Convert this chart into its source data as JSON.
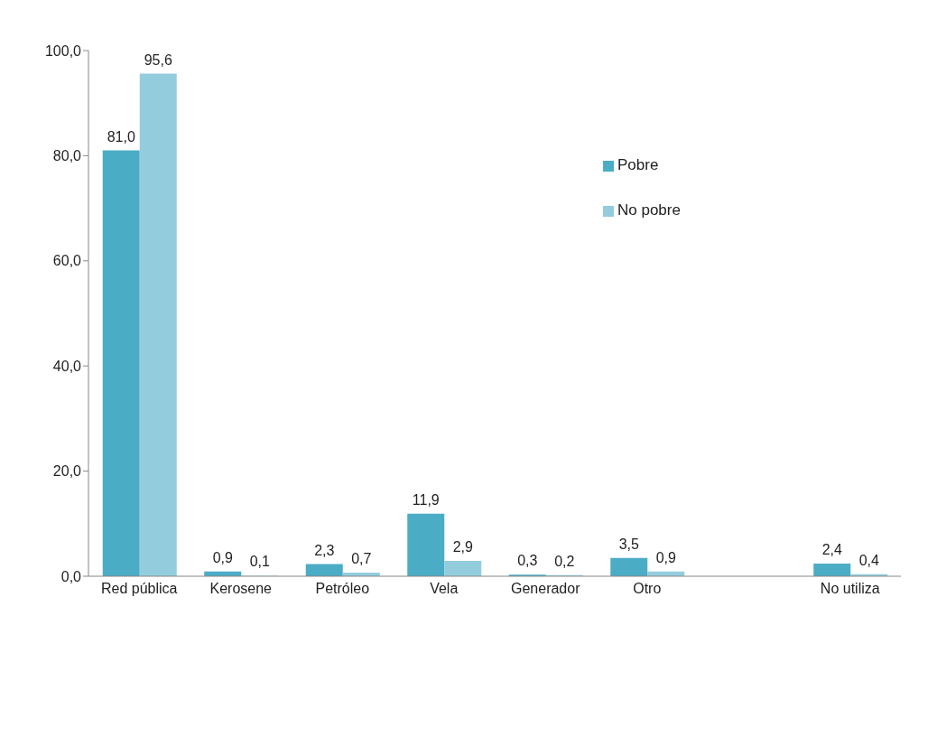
{
  "chart_data": {
    "type": "bar",
    "categories": [
      "Red pública",
      "Kerosene",
      "Petróleo",
      "Vela",
      "Generador",
      "Otro",
      null,
      "No utiliza"
    ],
    "series": [
      {
        "name": "Pobre",
        "color": "#4bacc6",
        "values": [
          81.0,
          0.9,
          2.3,
          11.9,
          0.3,
          3.5,
          null,
          2.4
        ],
        "value_labels": [
          "81,0",
          "0,9",
          "2,3",
          "11,9",
          "0,3",
          "3,5",
          null,
          "2,4"
        ]
      },
      {
        "name": "No pobre",
        "color": "#93cddd",
        "values": [
          95.6,
          0.1,
          0.7,
          2.9,
          0.2,
          0.9,
          null,
          0.4
        ],
        "value_labels": [
          "95,6",
          "0,1",
          "0,7",
          "2,9",
          "0,2",
          "0,9",
          null,
          "0,4"
        ]
      }
    ],
    "ylim": [
      0,
      100
    ],
    "yticks": [
      {
        "value": 0,
        "label": "0,0"
      },
      {
        "value": 20,
        "label": "20,0"
      },
      {
        "value": 40,
        "label": "40,0"
      },
      {
        "value": 60,
        "label": "60,0"
      },
      {
        "value": 80,
        "label": "80,0"
      },
      {
        "value": 100,
        "label": "100,0"
      }
    ],
    "grid": false,
    "legend": "top right"
  }
}
